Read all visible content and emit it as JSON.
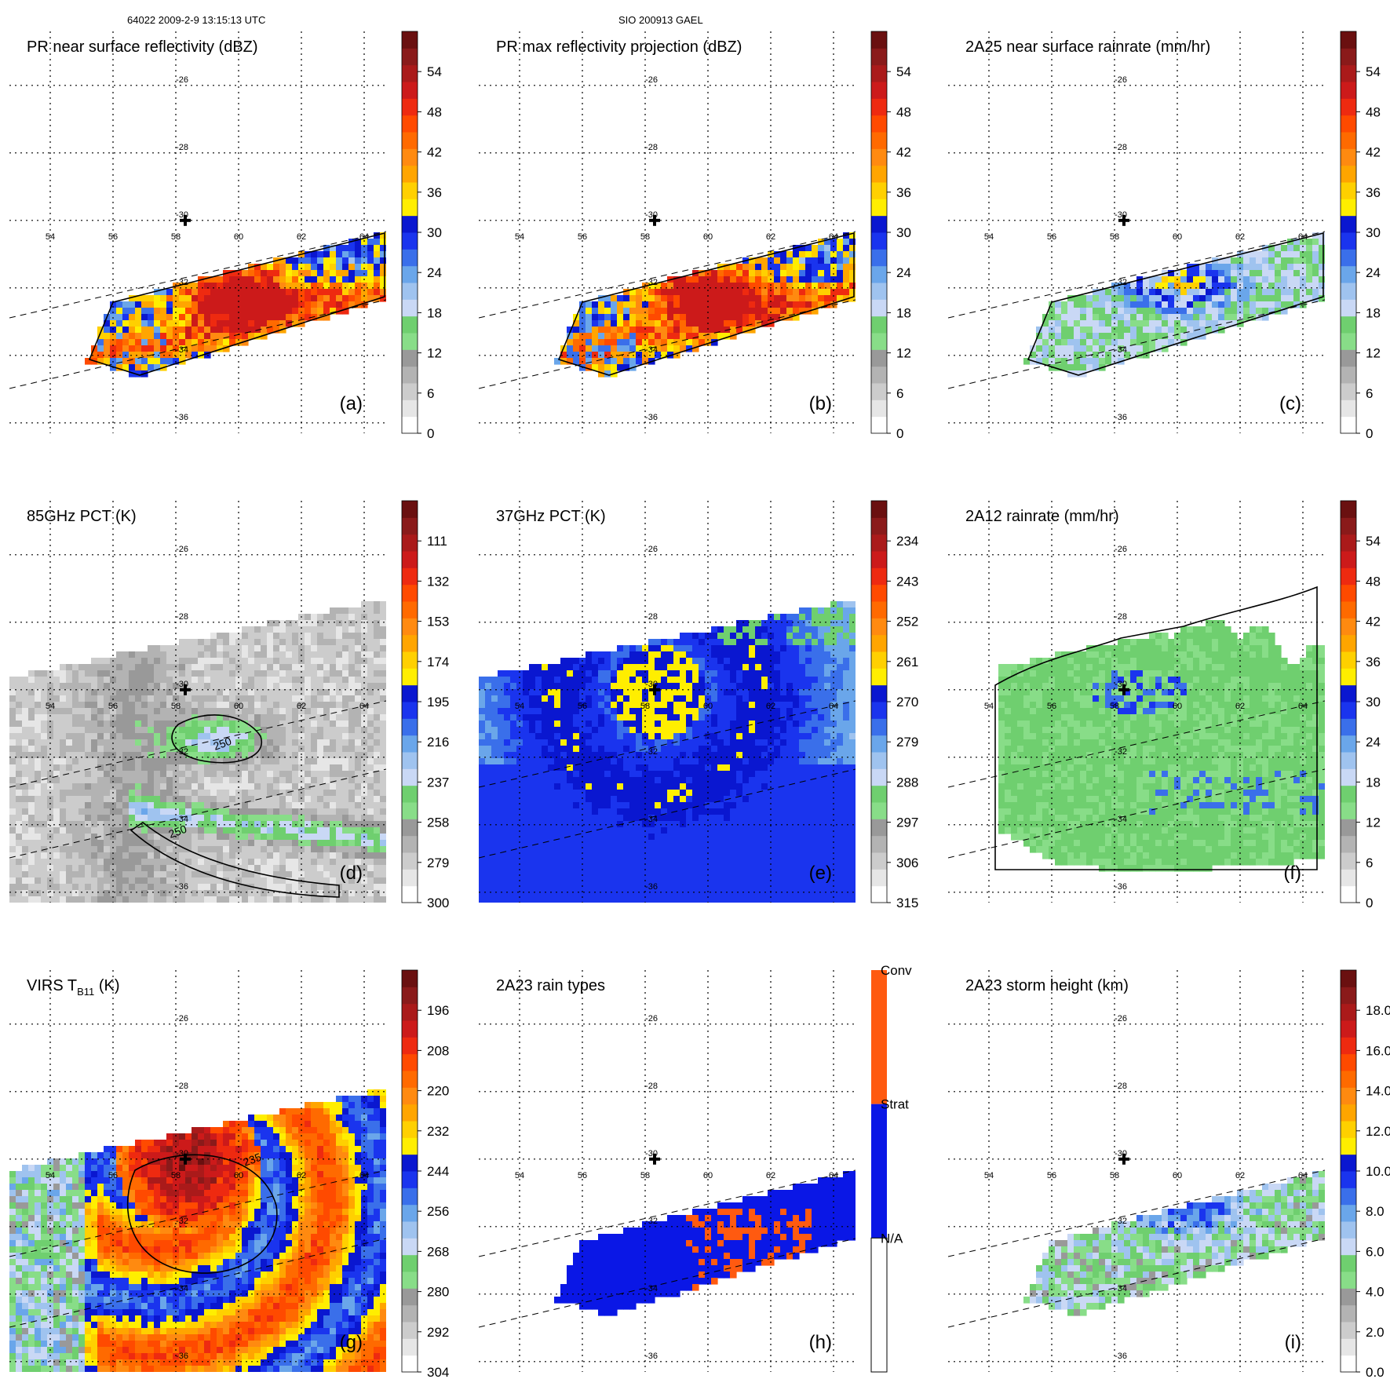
{
  "header": {
    "left": "64022 2009-2-9 13:15:13 UTC",
    "center": "SIO 200913 GAEL"
  },
  "map": {
    "lon_ticks": [
      "54",
      "56",
      "58",
      "60",
      "62",
      "64"
    ],
    "lat_ticks": [
      "-26",
      "-28",
      "-30",
      "-32",
      "-34",
      "-36"
    ],
    "storm_center": {
      "lon": 58.3,
      "lat": -30.0
    }
  },
  "colors": {
    "ramp": [
      "#ffffff",
      "#e6e6e6",
      "#cccccc",
      "#b3b3b3",
      "#999999",
      "#88dd88",
      "#6fcf6f",
      "#c9d8f5",
      "#9fc3ef",
      "#6aa6ea",
      "#3a6fea",
      "#1a34ee",
      "#0a17d0",
      "#ffee00",
      "#ffd000",
      "#ffa500",
      "#ff8a10",
      "#ff6a00",
      "#ff4a00",
      "#ee2a10",
      "#cc1a1a",
      "#aa1a1a",
      "#8a1a1a",
      "#6a1010"
    ],
    "conv": "#ff5a10",
    "strat": "#0a17e6"
  },
  "chart_data": [
    {
      "panel": "a",
      "type": "heatmap",
      "title": "PR near surface reflectivity (dBZ)",
      "colorbar_ticks": [
        "0",
        "6",
        "12",
        "18",
        "24",
        "30",
        "36",
        "42",
        "48",
        "54"
      ],
      "colorbar_range": [
        0,
        60
      ],
      "swath": "PR",
      "style": "refl",
      "contours": [
        "20 dBZ"
      ]
    },
    {
      "panel": "b",
      "type": "heatmap",
      "title": "PR max reflectivity projection (dBZ)",
      "colorbar_ticks": [
        "0",
        "6",
        "12",
        "18",
        "24",
        "30",
        "36",
        "42",
        "48",
        "54"
      ],
      "colorbar_range": [
        0,
        60
      ],
      "swath": "PR",
      "style": "refl",
      "contours": [
        "20 dBZ"
      ]
    },
    {
      "panel": "c",
      "type": "heatmap",
      "title": "2A25 near surface rainrate (mm/hr)",
      "colorbar_ticks": [
        "0",
        "6",
        "12",
        "18",
        "24",
        "30",
        "36",
        "42",
        "48",
        "54"
      ],
      "colorbar_range": [
        0,
        60
      ],
      "swath": "PR",
      "style": "rain",
      "contours": [
        "1 mm/hr"
      ]
    },
    {
      "panel": "d",
      "type": "heatmap",
      "title": "85GHz PCT (K)",
      "colorbar_ticks": [
        "300",
        "279",
        "258",
        "237",
        "216",
        "195",
        "174",
        "153",
        "132",
        "111"
      ],
      "colorbar_range": [
        300,
        90
      ],
      "swath": "TMI",
      "style": "pct85",
      "contours": [
        "250"
      ]
    },
    {
      "panel": "e",
      "type": "heatmap",
      "title": "37GHz PCT (K)",
      "colorbar_ticks": [
        "315",
        "306",
        "297",
        "288",
        "279",
        "270",
        "261",
        "252",
        "243",
        "234"
      ],
      "colorbar_range": [
        315,
        225
      ],
      "swath": "TMI",
      "style": "pct37",
      "contours": []
    },
    {
      "panel": "f",
      "type": "heatmap",
      "title": "2A12 rainrate (mm/hr)",
      "colorbar_ticks": [
        "0",
        "6",
        "12",
        "18",
        "24",
        "30",
        "36",
        "42",
        "48",
        "54"
      ],
      "colorbar_range": [
        0,
        60
      ],
      "swath": "TMI",
      "style": "rain12",
      "contours": [
        "1 mm/hr"
      ]
    },
    {
      "panel": "g",
      "type": "heatmap",
      "title": "VIRS T",
      "title_sub": "B11",
      "title_tail": " (K)",
      "colorbar_ticks": [
        "304",
        "292",
        "280",
        "268",
        "256",
        "244",
        "232",
        "220",
        "208",
        "196"
      ],
      "colorbar_range": [
        304,
        184
      ],
      "swath": "VIRS",
      "style": "virs",
      "contours": [
        "235"
      ]
    },
    {
      "panel": "h",
      "type": "heatmap",
      "title": "2A23 rain types",
      "categories": [
        "N/A",
        "Strat",
        "Conv"
      ],
      "swath": "PR",
      "style": "types",
      "contours": []
    },
    {
      "panel": "i",
      "type": "heatmap",
      "title": "2A23 storm height (km)",
      "colorbar_ticks": [
        "0.0",
        "2.0",
        "4.0",
        "6.0",
        "8.0",
        "10.0",
        "12.0",
        "14.0",
        "16.0",
        "18.0"
      ],
      "colorbar_range": [
        0,
        20
      ],
      "swath": "PR",
      "style": "height",
      "contours": []
    }
  ],
  "panel_labels": [
    "(a)",
    "(b)",
    "(c)",
    "(d)",
    "(e)",
    "(f)",
    "(g)",
    "(h)",
    "(i)"
  ],
  "contour_labels": {
    "d": [
      "250",
      "250"
    ],
    "g": [
      "235"
    ]
  }
}
